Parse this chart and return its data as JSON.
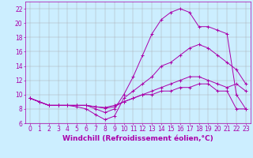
{
  "xlabel": "Windchill (Refroidissement éolien,°C)",
  "bg_color": "#cceeff",
  "line_color": "#aa00aa",
  "xlim": [
    -0.5,
    23.5
  ],
  "ylim": [
    6,
    23
  ],
  "xticks": [
    0,
    1,
    2,
    3,
    4,
    5,
    6,
    7,
    8,
    9,
    10,
    11,
    12,
    13,
    14,
    15,
    16,
    17,
    18,
    19,
    20,
    21,
    22,
    23
  ],
  "yticks": [
    6,
    8,
    10,
    12,
    14,
    16,
    18,
    20,
    22
  ],
  "series4_x": [
    0,
    1,
    2,
    3,
    4,
    5,
    6,
    7,
    8,
    9,
    10,
    11,
    12,
    13,
    14,
    15,
    16,
    17,
    18,
    19,
    20,
    21,
    22,
    23
  ],
  "series4_y": [
    9.5,
    9.0,
    8.5,
    8.5,
    8.5,
    8.5,
    8.5,
    8.0,
    7.5,
    8.0,
    10.0,
    12.5,
    15.5,
    18.5,
    20.5,
    21.5,
    22.0,
    21.5,
    19.5,
    19.5,
    19.0,
    18.5,
    10.0,
    8.0
  ],
  "series1_x": [
    0,
    1,
    2,
    3,
    4,
    5,
    6,
    7,
    8,
    9,
    10,
    11,
    12,
    13,
    14,
    15,
    16,
    17,
    18,
    19,
    20,
    21,
    22,
    23
  ],
  "series1_y": [
    9.5,
    9.0,
    8.5,
    8.5,
    8.5,
    8.3,
    8.0,
    7.2,
    6.5,
    7.0,
    9.5,
    10.5,
    11.5,
    12.5,
    14.0,
    14.5,
    15.5,
    16.5,
    17.0,
    16.5,
    15.5,
    14.5,
    13.5,
    11.5
  ],
  "series2_x": [
    0,
    1,
    2,
    3,
    4,
    5,
    6,
    7,
    8,
    9,
    10,
    11,
    12,
    13,
    14,
    15,
    16,
    17,
    18,
    19,
    20,
    21,
    22,
    23
  ],
  "series2_y": [
    9.5,
    9.0,
    8.5,
    8.5,
    8.5,
    8.5,
    8.5,
    8.3,
    8.2,
    8.5,
    9.0,
    9.5,
    10.0,
    10.5,
    11.0,
    11.5,
    12.0,
    12.5,
    12.5,
    12.0,
    11.5,
    11.0,
    11.5,
    10.5
  ],
  "series3_x": [
    0,
    1,
    2,
    3,
    4,
    5,
    6,
    7,
    8,
    9,
    10,
    11,
    12,
    13,
    14,
    15,
    16,
    17,
    18,
    19,
    20,
    21,
    22,
    23
  ],
  "series3_y": [
    9.5,
    9.0,
    8.5,
    8.5,
    8.5,
    8.5,
    8.5,
    8.3,
    8.1,
    8.3,
    9.0,
    9.5,
    10.0,
    10.0,
    10.5,
    10.5,
    11.0,
    11.0,
    11.5,
    11.5,
    10.5,
    10.5,
    8.0,
    8.0
  ],
  "grid_color": "#aaaaaa",
  "tick_fontsize": 5.5,
  "label_fontsize": 6.5
}
